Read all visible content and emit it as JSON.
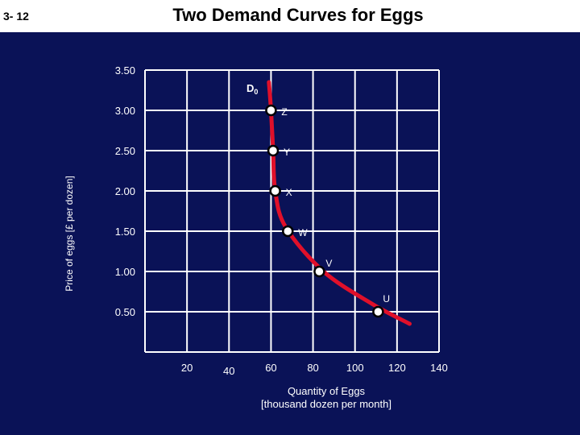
{
  "slide": {
    "number": "3- 12",
    "title": "Two Demand Curves for Eggs"
  },
  "colors": {
    "background": "#0a1257",
    "title_band": "#ffffff",
    "grid": "#ffffff",
    "curve": "#e0102a",
    "point_fill": "#ffffff",
    "text": "#ffffff"
  },
  "chart_data": {
    "type": "line",
    "title": "Two Demand Curves for Eggs",
    "xlabel": "Quantity of Eggs [thousand dozen per month]",
    "ylabel": "Price of eggs [£ per dozen]",
    "xlim": [
      0,
      140
    ],
    "ylim": [
      0,
      3.5
    ],
    "x_ticks": [
      "20",
      "40",
      "60",
      "80",
      "100",
      "120",
      "140"
    ],
    "y_ticks": [
      "3.50",
      "3.00",
      "2.50",
      "2.00",
      "1.50",
      "1.00",
      "0.50"
    ],
    "grid": true,
    "curve_label": "D",
    "curve_label_sub": "0",
    "curve": [
      {
        "x": 59,
        "y": 3.35
      },
      {
        "x": 60,
        "y": 3.0
      },
      {
        "x": 61,
        "y": 2.5
      },
      {
        "x": 62,
        "y": 2.0
      },
      {
        "x": 67,
        "y": 1.55
      },
      {
        "x": 85,
        "y": 1.0
      },
      {
        "x": 108,
        "y": 0.6
      },
      {
        "x": 126,
        "y": 0.35
      }
    ],
    "points": [
      {
        "label": "Z",
        "x": 60,
        "y": 3.0
      },
      {
        "label": "Y",
        "x": 61,
        "y": 2.5
      },
      {
        "label": "X",
        "x": 62,
        "y": 2.0
      },
      {
        "label": "W",
        "x": 68,
        "y": 1.5
      },
      {
        "label": "V",
        "x": 83,
        "y": 1.0
      },
      {
        "label": "U",
        "x": 111,
        "y": 0.5
      }
    ]
  }
}
